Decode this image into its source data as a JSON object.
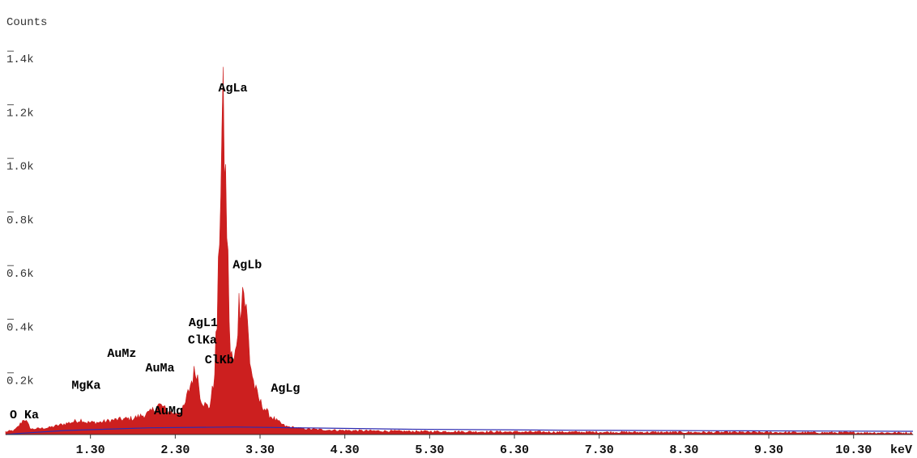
{
  "chart_data": {
    "type": "area",
    "ylabel": "Counts",
    "x_unit_label": "keV",
    "xlim": [
      0.3,
      11.0
    ],
    "ylim": [
      0,
      1500
    ],
    "grid": false,
    "y_ticks": [
      {
        "value": 200,
        "label": "0.2k"
      },
      {
        "value": 400,
        "label": "0.4k"
      },
      {
        "value": 600,
        "label": "0.6k"
      },
      {
        "value": 800,
        "label": "0.8k"
      },
      {
        "value": 1000,
        "label": "1.0k"
      },
      {
        "value": 1200,
        "label": "1.2k"
      },
      {
        "value": 1400,
        "label": "1.4k"
      }
    ],
    "x_ticks": [
      {
        "value": 1.3,
        "label": "1.30"
      },
      {
        "value": 2.3,
        "label": "2.30"
      },
      {
        "value": 3.3,
        "label": "3.30"
      },
      {
        "value": 4.3,
        "label": "4.30"
      },
      {
        "value": 5.3,
        "label": "5.30"
      },
      {
        "value": 6.3,
        "label": "6.30"
      },
      {
        "value": 7.3,
        "label": "7.30"
      },
      {
        "value": 8.3,
        "label": "8.30"
      },
      {
        "value": 9.3,
        "label": "9.30"
      },
      {
        "value": 10.3,
        "label": "10.30"
      }
    ],
    "spectrum_color": "#cc1f1f",
    "background_color": "#2e2bb0",
    "series": [
      {
        "x": [
          0.3,
          0.4,
          0.45,
          0.52,
          0.6,
          0.8,
          1.0,
          1.2,
          1.25,
          1.4,
          1.6,
          1.8,
          2.0,
          2.1,
          2.15,
          2.2,
          2.3,
          2.4,
          2.5,
          2.55,
          2.6,
          2.65,
          2.7,
          2.75,
          2.8,
          2.83,
          2.86,
          2.9,
          2.95,
          3.0,
          3.05,
          3.1,
          3.15,
          3.18,
          3.22,
          3.26,
          3.3,
          3.35,
          3.4,
          3.5,
          3.6,
          3.8,
          4.0,
          4.3,
          5.0,
          6.0,
          7.0,
          8.0,
          9.0,
          10.0,
          11.0
        ],
        "y": [
          10,
          15,
          30,
          60,
          20,
          25,
          40,
          55,
          45,
          45,
          55,
          60,
          80,
          110,
          105,
          85,
          80,
          95,
          210,
          245,
          140,
          110,
          100,
          180,
          450,
          900,
          1220,
          880,
          300,
          260,
          480,
          560,
          420,
          280,
          200,
          150,
          120,
          100,
          75,
          50,
          30,
          22,
          18,
          15,
          12,
          10,
          9,
          8,
          8,
          7,
          6
        ]
      }
    ],
    "background_series": {
      "x": [
        0.3,
        0.5,
        1.0,
        2.0,
        3.0,
        4.0,
        5.0,
        7.0,
        9.0,
        11.0
      ],
      "y": [
        0,
        5,
        15,
        25,
        28,
        24,
        20,
        16,
        14,
        12
      ]
    },
    "annotations": [
      {
        "text": "O Ka",
        "x": 0.52,
        "y": 60
      },
      {
        "text": "MgKa",
        "x": 1.25,
        "y": 170
      },
      {
        "text": "AuMz",
        "x": 1.67,
        "y": 290
      },
      {
        "text": "AuMa",
        "x": 2.12,
        "y": 235
      },
      {
        "text": "AuMg",
        "x": 2.22,
        "y": 75
      },
      {
        "text": "AgL1",
        "x": 2.63,
        "y": 405
      },
      {
        "text": "ClKa",
        "x": 2.62,
        "y": 340
      },
      {
        "text": "ClKb",
        "x": 2.82,
        "y": 265
      },
      {
        "text": "AgLa",
        "x": 2.98,
        "y": 1280
      },
      {
        "text": "AgLb",
        "x": 3.15,
        "y": 620
      },
      {
        "text": "AgLg",
        "x": 3.6,
        "y": 160
      }
    ]
  }
}
